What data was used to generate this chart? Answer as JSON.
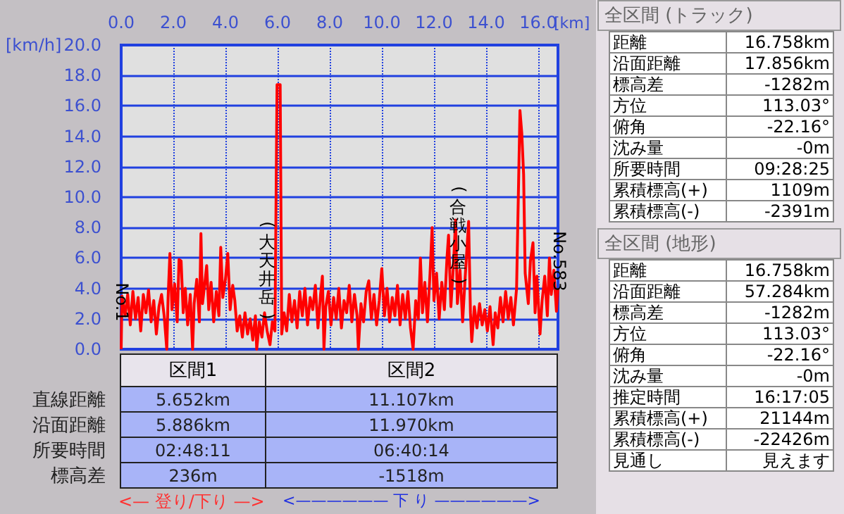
{
  "chart_data": {
    "type": "line",
    "xlabel": "[km]",
    "ylabel": "[km/h]",
    "x": [
      0,
      0.03,
      0.15,
      0.25,
      0.35,
      0.45,
      0.55,
      0.65,
      0.75,
      0.85,
      0.95,
      1.05,
      1.15,
      1.25,
      1.35,
      1.45,
      1.55,
      1.65,
      1.75,
      1.8,
      1.87,
      1.95,
      2.05,
      2.15,
      2.22,
      2.3,
      2.38,
      2.46,
      2.55,
      2.65,
      2.74,
      2.8,
      2.9,
      3.0,
      3.06,
      3.12,
      3.2,
      3.28,
      3.36,
      3.45,
      3.55,
      3.65,
      3.75,
      3.82,
      3.9,
      4.0,
      4.09,
      4.18,
      4.28,
      4.36,
      4.45,
      4.55,
      4.65,
      4.75,
      4.85,
      4.95,
      5.05,
      5.15,
      5.2,
      5.3,
      5.4,
      5.5,
      5.6,
      5.71,
      5.8,
      5.9,
      5.98,
      6.1,
      6.16,
      6.25,
      6.35,
      6.45,
      6.55,
      6.65,
      6.75,
      6.85,
      6.95,
      7.05,
      7.15,
      7.25,
      7.35,
      7.45,
      7.55,
      7.65,
      7.72,
      7.78,
      7.85,
      7.95,
      8.05,
      8.15,
      8.25,
      8.35,
      8.45,
      8.55,
      8.65,
      8.75,
      8.85,
      8.95,
      9.05,
      9.1,
      9.2,
      9.3,
      9.4,
      9.5,
      9.6,
      9.7,
      9.8,
      9.9,
      10.0,
      10.1,
      10.2,
      10.3,
      10.4,
      10.5,
      10.6,
      10.7,
      10.8,
      10.9,
      11.0,
      11.1,
      11.2,
      11.3,
      11.4,
      11.48,
      11.56,
      11.65,
      11.75,
      11.85,
      11.93,
      12.0,
      12.1,
      12.2,
      12.3,
      12.4,
      12.5,
      12.56,
      12.65,
      12.75,
      12.83,
      12.9,
      13.0,
      13.1,
      13.2,
      13.33,
      13.4,
      13.45,
      13.55,
      13.65,
      13.75,
      13.85,
      13.95,
      14.05,
      14.15,
      14.27,
      14.35,
      14.45,
      14.55,
      14.65,
      14.75,
      14.85,
      14.95,
      15.05,
      15.17,
      15.3,
      15.37,
      15.44,
      15.5,
      15.62,
      15.7,
      15.8,
      15.88,
      15.95,
      16.07,
      16.15,
      16.25,
      16.35,
      16.43,
      16.5,
      16.6,
      16.7,
      16.758
    ],
    "series": [
      {
        "color": "#ff0000",
        "values": [
          0,
          3.5,
          2.2,
          3.6,
          1.6,
          3.8,
          2.0,
          3.4,
          1.2,
          3.6,
          2.4,
          3.9,
          1.8,
          3.2,
          1.0,
          2.8,
          3.6,
          2.2,
          0,
          3.4,
          6.3,
          2.6,
          4.3,
          1.8,
          5.9,
          5.8,
          2.4,
          4.0,
          1.6,
          3.6,
          0,
          3.0,
          4.6,
          1.8,
          7.6,
          3.0,
          4.2,
          5.5,
          2.6,
          4.4,
          1.8,
          3.8,
          2.2,
          6.7,
          3.4,
          4.6,
          6.3,
          2.6,
          4.2,
          3.2,
          1.2,
          2.2,
          0.8,
          2.4,
          1.0,
          2.0,
          0.6,
          2.2,
          0,
          1.8,
          0.8,
          2.4,
          1.2,
          0.3,
          1.8,
          1.2,
          17.4,
          17.4,
          1.0,
          2.4,
          1.2,
          3.6,
          1.8,
          3.2,
          1.4,
          3.8,
          2.2,
          4.0,
          1.6,
          3.4,
          2.6,
          4.2,
          1.4,
          3.6,
          4.8,
          0,
          2.8,
          3.8,
          1.6,
          3.4,
          2.0,
          4.0,
          1.4,
          3.2,
          2.4,
          4.2,
          1.8,
          3.6,
          2.2,
          0,
          3.0,
          1.8,
          3.8,
          4.5,
          2.0,
          3.6,
          1.6,
          3.2,
          5.3,
          2.2,
          4.0,
          1.8,
          3.4,
          2.2,
          4.2,
          1.6,
          3.6,
          2.0,
          3.8,
          1.4,
          0,
          3.2,
          2.0,
          6.0,
          2.4,
          4.4,
          1.8,
          5.0,
          8.0,
          3.2,
          5.0,
          2.0,
          4.4,
          2.6,
          6.0,
          7.5,
          2.8,
          5.6,
          8.5,
          3.0,
          5.2,
          1.8,
          4.8,
          8.4,
          2.4,
          0.5,
          2.8,
          1.4,
          3.0,
          1.6,
          2.6,
          1.2,
          2.8,
          0.3,
          2.4,
          1.4,
          3.4,
          1.8,
          3.8,
          2.0,
          3.4,
          1.6,
          4.0,
          15.7,
          14.2,
          11.5,
          5.0,
          3.0,
          5.8,
          7.0,
          2.4,
          4.8,
          1.0,
          3.2,
          4.8,
          2.2,
          6.0,
          3.6,
          5.2,
          2.5,
          4.0
        ]
      }
    ],
    "xlim": [
      0,
      16.758
    ],
    "xticks": [
      {
        "value": 0,
        "label": "0.0"
      },
      {
        "value": 2,
        "label": "2.0"
      },
      {
        "value": 4,
        "label": "4.0"
      },
      {
        "value": 6,
        "label": "6.0"
      },
      {
        "value": 8,
        "label": "8.0"
      },
      {
        "value": 10,
        "label": "10.0"
      },
      {
        "value": 12,
        "label": "12.0"
      },
      {
        "value": 14,
        "label": "14.0"
      },
      {
        "value": 16,
        "label": "16.0"
      }
    ],
    "ylim": [
      0,
      20
    ],
    "yticks": [
      {
        "value": 0,
        "label": "0.0"
      },
      {
        "value": 2,
        "label": "2.0"
      },
      {
        "value": 4,
        "label": "4.0"
      },
      {
        "value": 6,
        "label": "6.0"
      },
      {
        "value": 8,
        "label": "8.0"
      },
      {
        "value": 10,
        "label": "10.0"
      },
      {
        "value": 12,
        "label": "12.0"
      },
      {
        "value": 14,
        "label": "14.0"
      },
      {
        "value": 16,
        "label": "16.0"
      },
      {
        "value": 18,
        "label": "18.0"
      },
      {
        "value": 20,
        "label": "20.0"
      }
    ],
    "grid": true,
    "annotations": [
      "区間1",
      "区間2",
      "直線距離",
      "沿面距離",
      "所要時間",
      "標高差",
      "5.652km",
      "5.886km",
      "02:48:11",
      "236m",
      "11.107km",
      "11.970km",
      "06:40:14",
      "-1518m",
      "<— 登り/下り —>",
      "<—————— 下 り ——————>",
      "全区間 (トラック)",
      "距離",
      "16.758km",
      "沿面距離",
      "17.856km",
      "標高差",
      "-1282m",
      "方位",
      "113.03°",
      "俯角",
      "-22.16°",
      "沈み量",
      "-0m",
      "所要時間",
      "09:28:25",
      "累積標高(+)",
      "1109m",
      "累積標高(-)",
      "-2391m",
      "全区間 (地形)",
      "距離",
      "16.758km",
      "沿面距離",
      "57.284km",
      "標高差",
      "-1282m",
      "方位",
      "113.03°",
      "俯角",
      "-22.16°",
      "沈み量",
      "-0m",
      "推定時間",
      "16:17:05",
      "累積標高(+)",
      "21144m",
      "累積標高(-)",
      "-22426m",
      "見通し",
      "見えます",
      {
        "text": "No.1",
        "x": 0,
        "y": 1.8
      },
      {
        "text": "(大天井岳)",
        "x": 5.6,
        "y": 1.6
      },
      {
        "text": "(合戦小屋)",
        "x": 12.92,
        "y": 3.9
      },
      {
        "text": "No.583",
        "x": 16.758,
        "y": 3.8
      }
    ]
  }
}
